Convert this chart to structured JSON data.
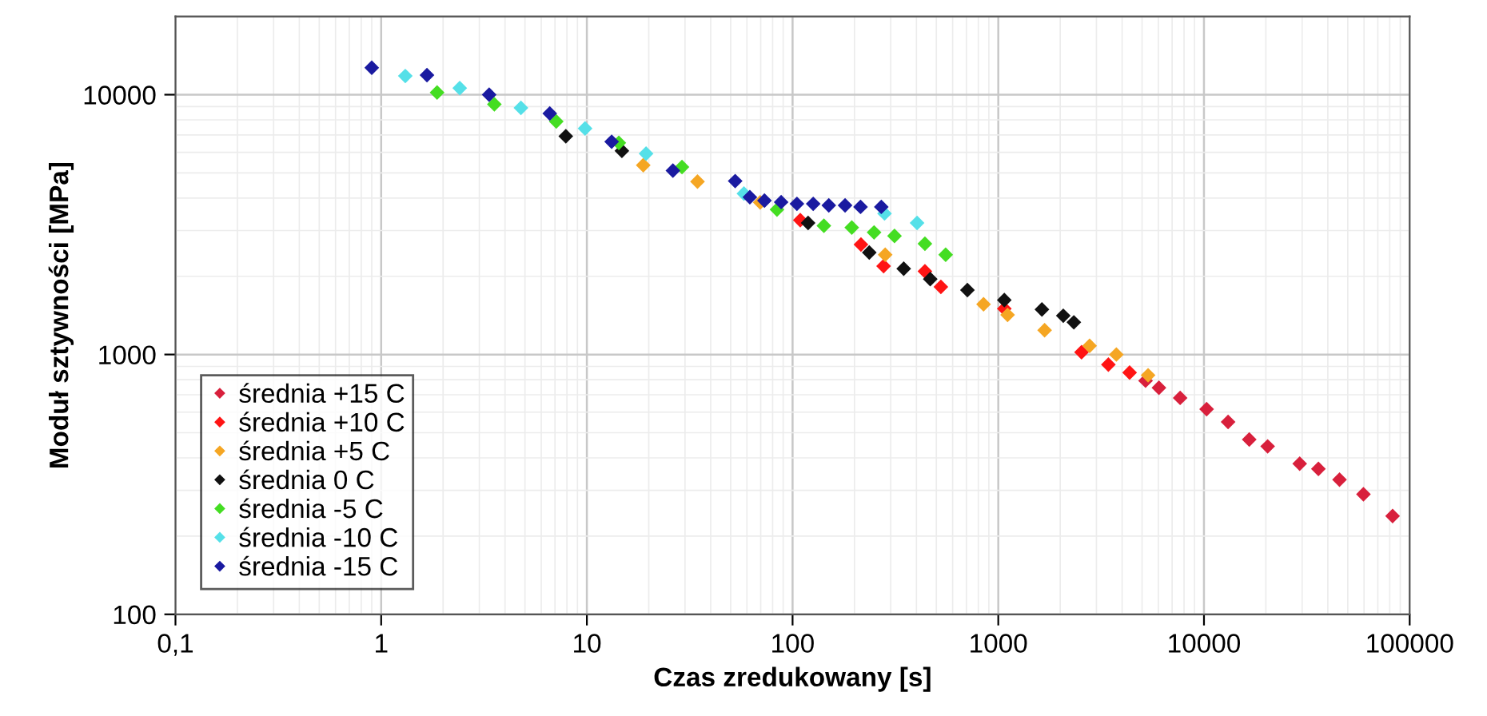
{
  "chart_data": {
    "type": "scatter",
    "xlabel": "Czas zredukowany [s]",
    "ylabel": "Moduł sztywności [MPa]",
    "log": "xy",
    "grid": true,
    "legend": "bottom left",
    "marker": "diamond",
    "xlim": [
      0.1,
      100000
    ],
    "ylim": [
      100,
      20000
    ],
    "xticks": [
      {
        "value": 0.1,
        "label": "0,1"
      },
      1,
      10,
      100,
      1000,
      10000,
      100000
    ],
    "yticks": [
      100,
      1000,
      10000
    ],
    "series": [
      {
        "name": "średnia +15 C",
        "color": "#d8203c",
        "x": [
          5200,
          6040,
          7660,
          10300,
          13100,
          16600,
          20400,
          29200,
          36000,
          45600,
          59600,
          82600
        ],
        "values": [
          793,
          745,
          681,
          616,
          550,
          471,
          443,
          380,
          363,
          330,
          290,
          239
        ]
      },
      {
        "name": "średnia +10 C",
        "color": "#ff1414",
        "x": [
          109,
          215,
          277,
          440,
          526,
          1070,
          1730,
          2540,
          3430,
          4350
        ],
        "values": [
          3290,
          2650,
          2190,
          2090,
          1820,
          1500,
          null,
          1020,
          914,
          852
        ]
      },
      {
        "name": "średnia +5 C",
        "color": "#f5a623",
        "x": [
          18.8,
          34.5,
          69.6,
          282,
          848,
          1110,
          1680,
          2780,
          3750,
          5350
        ],
        "values": [
          5350,
          4630,
          3850,
          2420,
          1560,
          1420,
          1240,
          1080,
          1000,
          832
        ]
      },
      {
        "name": "średnia 0 C",
        "color": "#111111",
        "x": [
          7.9,
          14.8,
          29.3,
          119,
          236,
          347,
          467,
          708,
          1070,
          1630,
          2070,
          2330
        ],
        "values": [
          6920,
          6080,
          null,
          3210,
          2470,
          2140,
          1950,
          1770,
          1620,
          1490,
          1410,
          1330
        ]
      },
      {
        "name": "średnia -5 C",
        "color": "#44dd22",
        "x": [
          1.87,
          3.55,
          7.1,
          14.3,
          29,
          84,
          142,
          194,
          249,
          313,
          440,
          555
        ],
        "values": [
          10200,
          9180,
          7890,
          6530,
          5270,
          3610,
          3130,
          3080,
          2950,
          2860,
          2670,
          2420
        ]
      },
      {
        "name": "średnia -10 C",
        "color": "#55e0e8",
        "x": [
          1.31,
          2.41,
          4.78,
          9.8,
          19.4,
          58,
          105,
          180,
          280,
          403
        ],
        "values": [
          11800,
          10600,
          8900,
          7410,
          5930,
          4160,
          null,
          null,
          3490,
          3210
        ]
      },
      {
        "name": "średnia -15 C",
        "color": "#1a1aa0",
        "x": [
          0.9,
          1.67,
          3.35,
          6.6,
          13.2,
          26.2,
          52.6,
          62,
          73,
          88,
          105,
          126,
          150,
          180,
          214,
          270
        ],
        "values": [
          12700,
          11900,
          10000,
          8470,
          6590,
          5100,
          4650,
          4030,
          3910,
          3860,
          3800,
          3800,
          3750,
          3750,
          3700,
          3700
        ]
      }
    ]
  }
}
